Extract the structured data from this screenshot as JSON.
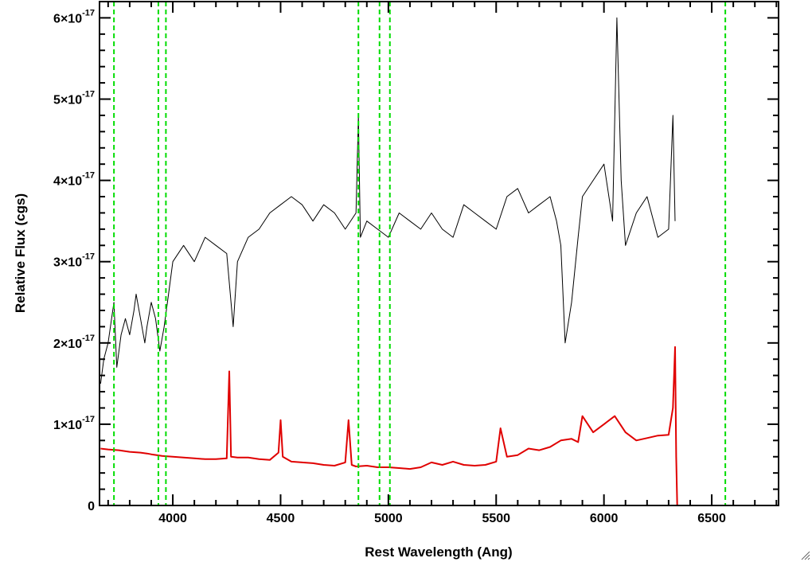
{
  "chart_data": {
    "type": "line",
    "title": "",
    "xlabel": "Rest Wavelength (Ang)",
    "ylabel": "Relative Flux (cgs)",
    "xlim": [
      3660,
      6810
    ],
    "ylim": [
      0,
      6.2e-17
    ],
    "x_ticks": [
      {
        "value": 4000,
        "label": "4000"
      },
      {
        "value": 4500,
        "label": "4500"
      },
      {
        "value": 5000,
        "label": "5000"
      },
      {
        "value": 5500,
        "label": "5500"
      },
      {
        "value": 6000,
        "label": "6000"
      },
      {
        "value": 6500,
        "label": "6500"
      }
    ],
    "y_ticks": [
      {
        "value": 0,
        "mantissa": "0",
        "exponent": ""
      },
      {
        "value": 1e-17,
        "mantissa": "1×10",
        "exponent": "-17"
      },
      {
        "value": 2e-17,
        "mantissa": "2×10",
        "exponent": "-17"
      },
      {
        "value": 3e-17,
        "mantissa": "3×10",
        "exponent": "-17"
      },
      {
        "value": 4e-17,
        "mantissa": "4×10",
        "exponent": "-17"
      },
      {
        "value": 5e-17,
        "mantissa": "5×10",
        "exponent": "-17"
      },
      {
        "value": 6e-17,
        "mantissa": "6×10",
        "exponent": "-17"
      }
    ],
    "vertical_lines": [
      3727,
      3933,
      3968,
      4861,
      4959,
      5007,
      6563
    ],
    "series": [
      {
        "color": "#000000",
        "x": [
          3665,
          3680,
          3700,
          3727,
          3740,
          3760,
          3780,
          3800,
          3820,
          3830,
          3850,
          3870,
          3880,
          3900,
          3920,
          3940,
          3960,
          3980,
          4000,
          4050,
          4100,
          4150,
          4200,
          4250,
          4280,
          4300,
          4350,
          4400,
          4450,
          4500,
          4550,
          4600,
          4650,
          4700,
          4750,
          4800,
          4850,
          4861,
          4870,
          4900,
          4950,
          5000,
          5050,
          5100,
          5150,
          5200,
          5250,
          5300,
          5350,
          5400,
          5450,
          5500,
          5550,
          5600,
          5650,
          5700,
          5750,
          5780,
          5800,
          5820,
          5850,
          5880,
          5900,
          5950,
          6000,
          6040,
          6060,
          6080,
          6100,
          6150,
          6200,
          6250,
          6300,
          6320,
          6330
        ],
        "y": [
          1.5e-17,
          1.8e-17,
          2e-17,
          2.5e-17,
          1.7e-17,
          2.1e-17,
          2.3e-17,
          2.1e-17,
          2.4e-17,
          2.6e-17,
          2.3e-17,
          2e-17,
          2.2e-17,
          2.5e-17,
          2.3e-17,
          1.9e-17,
          2.2e-17,
          2.6e-17,
          3e-17,
          3.2e-17,
          3e-17,
          3.3e-17,
          3.2e-17,
          3.1e-17,
          2.2e-17,
          3e-17,
          3.3e-17,
          3.4e-17,
          3.6e-17,
          3.7e-17,
          3.8e-17,
          3.7e-17,
          3.5e-17,
          3.7e-17,
          3.6e-17,
          3.4e-17,
          3.6e-17,
          4.8e-17,
          3.3e-17,
          3.5e-17,
          3.4e-17,
          3.3e-17,
          3.6e-17,
          3.5e-17,
          3.4e-17,
          3.6e-17,
          3.4e-17,
          3.3e-17,
          3.7e-17,
          3.6e-17,
          3.5e-17,
          3.4e-17,
          3.8e-17,
          3.9e-17,
          3.6e-17,
          3.7e-17,
          3.8e-17,
          3.5e-17,
          3.2e-17,
          2e-17,
          2.5e-17,
          3.3e-17,
          3.8e-17,
          4e-17,
          4.2e-17,
          3.5e-17,
          6e-17,
          4e-17,
          3.2e-17,
          3.6e-17,
          3.8e-17,
          3.3e-17,
          3.4e-17,
          4.8e-17,
          3.5e-17
        ]
      },
      {
        "color": "#e00000",
        "x": [
          3665,
          3700,
          3750,
          3800,
          3850,
          3880,
          3900,
          3950,
          4000,
          4050,
          4100,
          4150,
          4200,
          4250,
          4262,
          4270,
          4300,
          4350,
          4400,
          4450,
          4490,
          4500,
          4510,
          4550,
          4600,
          4650,
          4700,
          4750,
          4800,
          4815,
          4830,
          4850,
          4900,
          4950,
          5000,
          5050,
          5100,
          5150,
          5200,
          5250,
          5300,
          5350,
          5400,
          5450,
          5500,
          5520,
          5550,
          5600,
          5650,
          5700,
          5750,
          5800,
          5850,
          5880,
          5900,
          5950,
          6000,
          6050,
          6100,
          6150,
          6200,
          6250,
          6300,
          6320,
          6330,
          6335,
          6340,
          6400,
          6500,
          6600,
          6700,
          6810
        ],
        "y": [
          7e-18,
          6.9e-18,
          6.8e-18,
          6.6e-18,
          6.5e-18,
          6.4e-18,
          6.3e-18,
          6.1e-18,
          6e-18,
          5.9e-18,
          5.8e-18,
          5.7e-18,
          5.7e-18,
          5.8e-18,
          1.65e-17,
          6e-18,
          5.9e-18,
          5.9e-18,
          5.7e-18,
          5.6e-18,
          6.5e-18,
          1.05e-17,
          6e-18,
          5.4e-18,
          5.3e-18,
          5.2e-18,
          5e-18,
          4.9e-18,
          5.3e-18,
          1.05e-17,
          5e-18,
          4.8e-18,
          4.9e-18,
          4.7e-18,
          4.7e-18,
          4.6e-18,
          4.5e-18,
          4.7e-18,
          5.3e-18,
          5e-18,
          5.4e-18,
          5e-18,
          4.9e-18,
          5e-18,
          5.4e-18,
          9.5e-18,
          6e-18,
          6.2e-18,
          7e-18,
          6.8e-18,
          7.2e-18,
          8e-18,
          8.2e-18,
          7.8e-18,
          1.1e-17,
          9e-18,
          1e-17,
          1.1e-17,
          9e-18,
          8e-18,
          8.3e-18,
          8.6e-18,
          8.7e-18,
          1.2e-17,
          1.95e-17,
          6e-18,
          0,
          0,
          0,
          0,
          0,
          0
        ]
      }
    ],
    "colors": {
      "vertical_lines": "#00dd00"
    }
  }
}
